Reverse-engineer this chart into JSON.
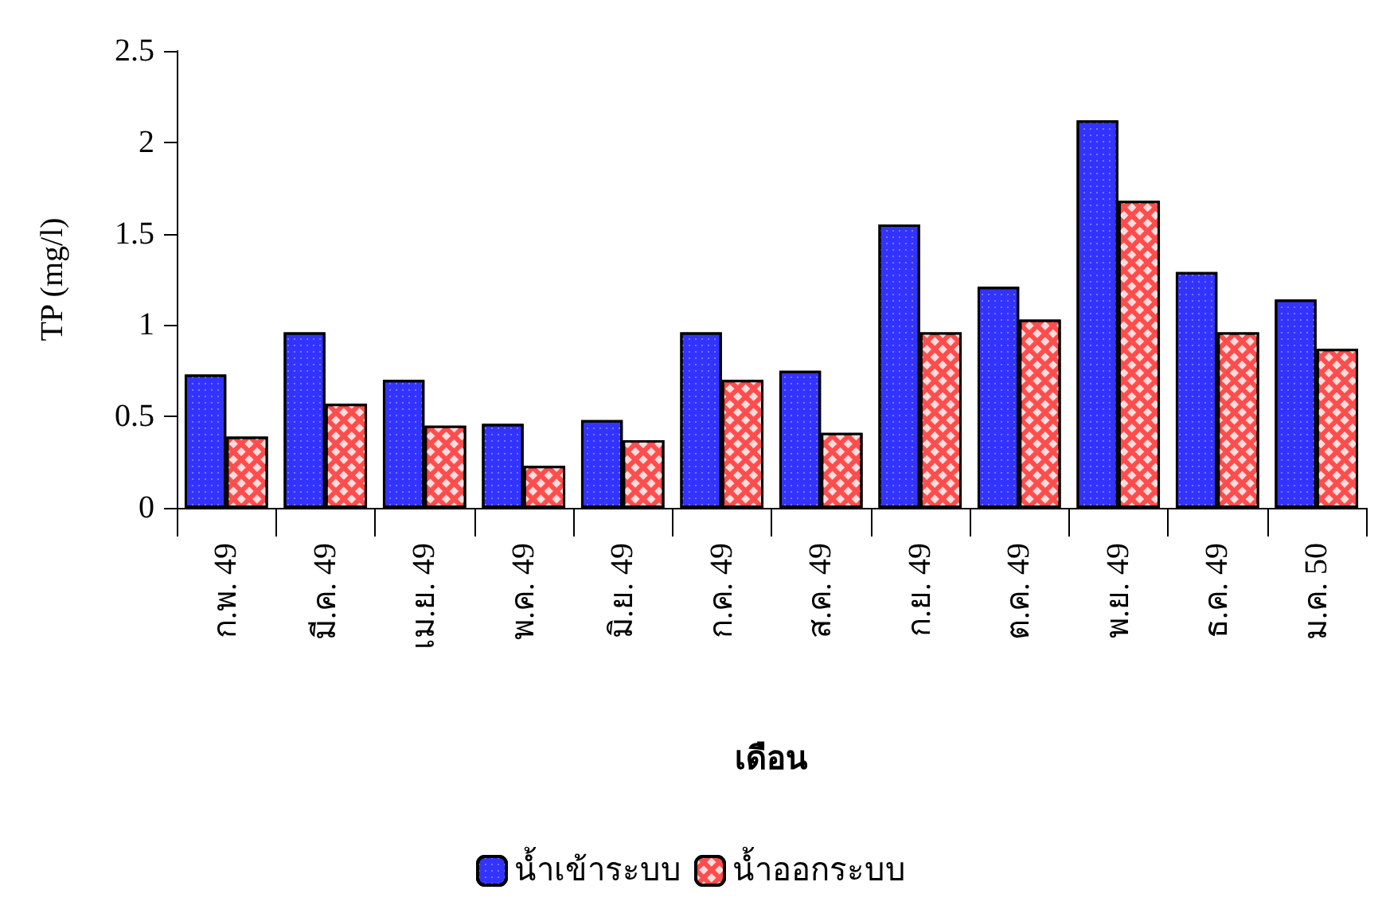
{
  "chart_data": {
    "type": "bar",
    "ylabel": "TP (mg/l)",
    "xlabel": "เดือน",
    "categories": [
      "ก.พ. 49",
      "มี.ค. 49",
      "เม.ย. 49",
      "พ.ค. 49",
      "มิ.ย. 49",
      "ก.ค. 49",
      "ส.ค. 49",
      "ก.ย. 49",
      "ต.ค. 49",
      "พ.ย. 49",
      "ธ.ค. 49",
      "ม.ค. 50"
    ],
    "series": [
      {
        "name": "น้ำเข้าระบบ",
        "color": "#3333ff",
        "values": [
          0.73,
          0.96,
          0.7,
          0.46,
          0.48,
          0.96,
          0.75,
          1.55,
          1.21,
          2.12,
          1.29,
          1.14
        ]
      },
      {
        "name": "น้ำออกระบบ",
        "color": "#ff4d4d",
        "values": [
          0.39,
          0.57,
          0.45,
          0.23,
          0.37,
          0.7,
          0.41,
          0.96,
          1.03,
          1.68,
          0.96,
          0.87
        ]
      }
    ],
    "ylim": [
      0,
      2.5
    ],
    "yticks": [
      0,
      0.5,
      1,
      1.5,
      2,
      2.5
    ],
    "grid": false,
    "legend": "bottom"
  }
}
